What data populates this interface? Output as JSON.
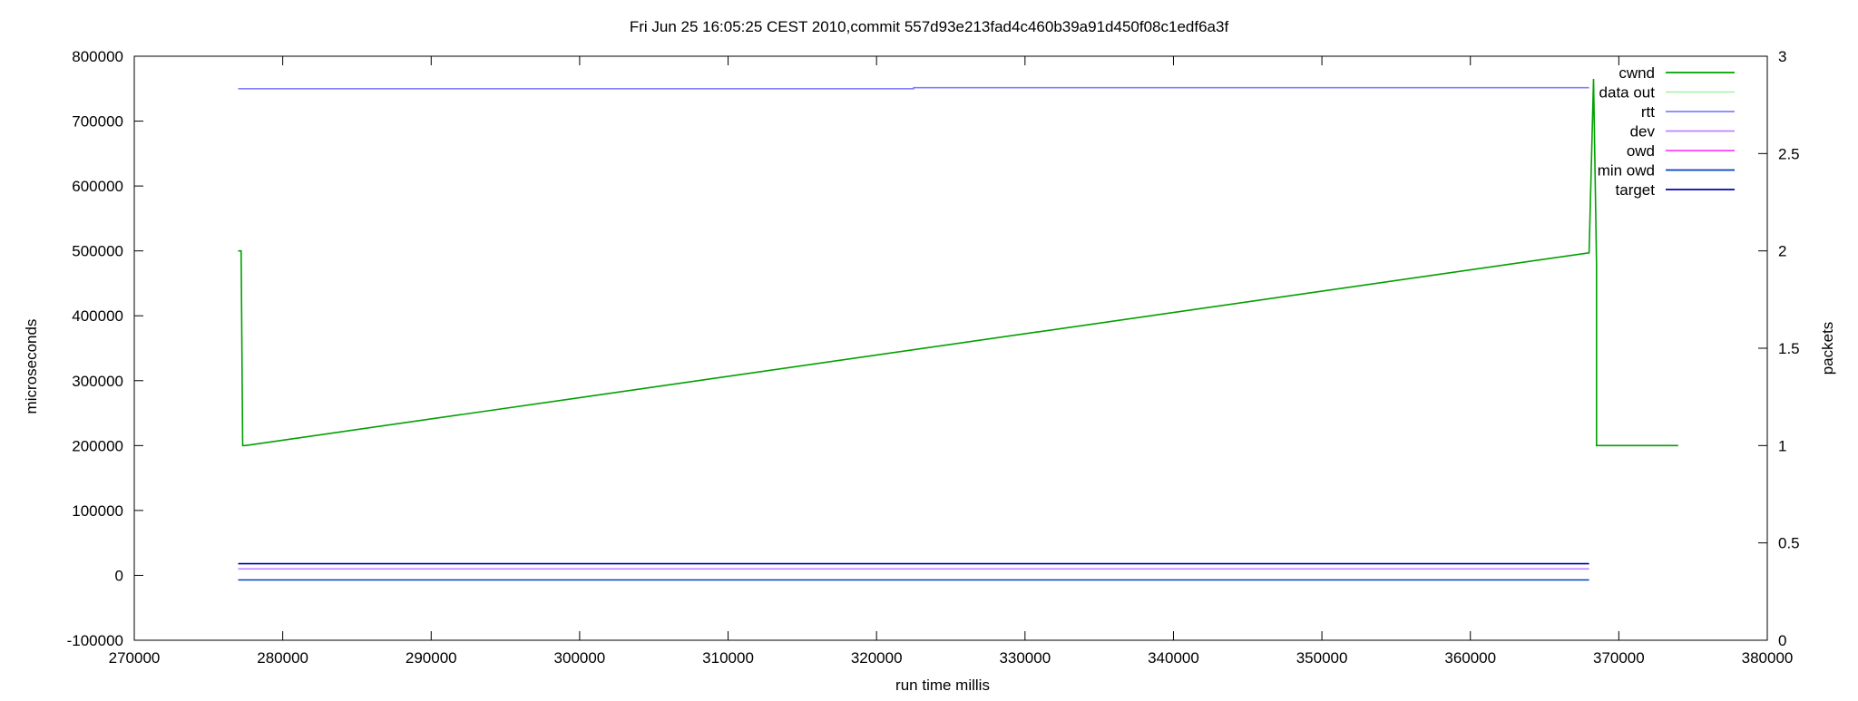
{
  "chart_data": {
    "type": "line",
    "title": "Fri Jun 25 16:05:25 CEST 2010,commit 557d93e213fad4c460b39a91d450f08c1edf6a3f",
    "xlabel": "run time millis",
    "ylabel": "microseconds",
    "y2label": "packets",
    "xlim": [
      270000,
      380000
    ],
    "ylim": [
      -100000,
      800000
    ],
    "y2lim": [
      0,
      3
    ],
    "x_ticks": [
      "270000",
      "280000",
      "290000",
      "300000",
      "310000",
      "320000",
      "330000",
      "340000",
      "350000",
      "360000",
      "370000",
      "380000"
    ],
    "x_tick_values": [
      270000,
      280000,
      290000,
      300000,
      310000,
      320000,
      330000,
      340000,
      350000,
      360000,
      370000,
      380000
    ],
    "y_ticks": [
      "-100000",
      "0",
      "100000",
      "200000",
      "300000",
      "400000",
      "500000",
      "600000",
      "700000",
      "800000"
    ],
    "y_tick_values": [
      -100000,
      0,
      100000,
      200000,
      300000,
      400000,
      500000,
      600000,
      700000,
      800000
    ],
    "y2_ticks": [
      "0",
      "0.5",
      "1",
      "1.5",
      "2",
      "2.5",
      "3"
    ],
    "y2_tick_values": [
      0,
      0.5,
      1,
      1.5,
      2,
      2.5,
      3
    ],
    "grid": false,
    "legend_position": "top-right",
    "series": [
      {
        "name": "cwnd",
        "color": "#00a000",
        "axis": "y",
        "x": [
          277000,
          277200,
          277300,
          277500,
          368000,
          368300,
          368500,
          368500,
          374000
        ],
        "y": [
          500000,
          500000,
          200000,
          200000,
          497000,
          765000,
          480000,
          200000,
          200000
        ]
      },
      {
        "name": "data out",
        "color": "#b0f0b0",
        "axis": "y",
        "x": [],
        "y": []
      },
      {
        "name": "rtt",
        "color": "#8080ff",
        "axis": "y",
        "x": [
          277000,
          322500,
          322500,
          368000
        ],
        "y": [
          750000,
          750000,
          751500,
          751500
        ]
      },
      {
        "name": "dev",
        "color": "#c080ff",
        "axis": "y",
        "x": [
          277000,
          368000
        ],
        "y": [
          10000,
          10000
        ]
      },
      {
        "name": "owd",
        "color": "#ff40ff",
        "axis": "y",
        "x": [],
        "y": []
      },
      {
        "name": "min owd",
        "color": "#0040c0",
        "axis": "y",
        "x": [
          277000,
          368000
        ],
        "y": [
          -7000,
          -7000
        ]
      },
      {
        "name": "target",
        "color": "#0000b0",
        "axis": "y",
        "x": [
          277000,
          368000
        ],
        "y": [
          18000,
          18000
        ]
      }
    ]
  }
}
